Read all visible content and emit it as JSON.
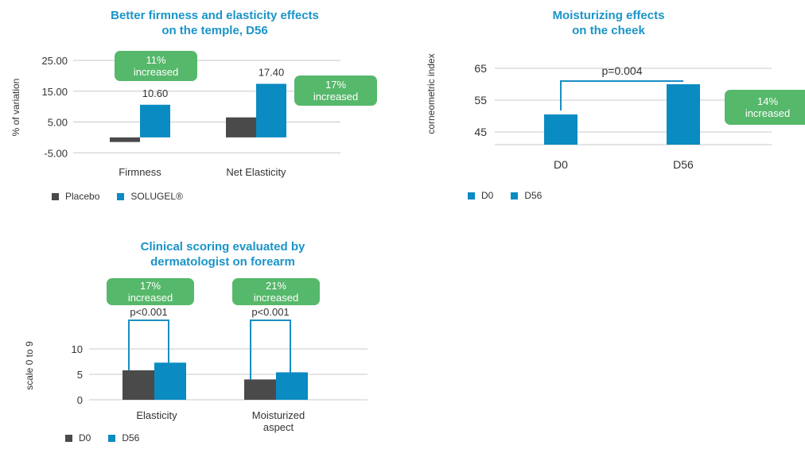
{
  "colors": {
    "placebo": "#4a4a4a",
    "product": "#0a8bc2",
    "badge": "#56b86a",
    "badge_text": "#ffffff",
    "axis": "#c8c8c8",
    "title": "#1a94c8",
    "bracket": "#1a8fc4"
  },
  "chart_data": [
    {
      "type": "bar",
      "title": "Better firmness and elasticity effects\non the temple, D56",
      "ylabel": "% of variation",
      "xlabel": "",
      "ylim": [
        -7,
        25
      ],
      "yticks": [
        25,
        15,
        5,
        -5
      ],
      "ytick_labels": [
        "25.00",
        "15.00",
        "5.00",
        "-5.00"
      ],
      "categories": [
        "Firmness",
        "Net Elasticity"
      ],
      "series": [
        {
          "name": "Placebo",
          "values": [
            -1.5,
            6.5
          ]
        },
        {
          "name": "SOLUGEL®",
          "values": [
            10.6,
            17.4
          ]
        }
      ],
      "data_labels": [
        "10.60",
        "17.40"
      ],
      "badges": [
        {
          "line1": "11%",
          "line2": "increased"
        },
        {
          "line1": "17%",
          "line2": "increased"
        }
      ],
      "legend": [
        "Placebo",
        "SOLUGEL®"
      ]
    },
    {
      "type": "bar",
      "title": "Moisturizing effects\non the cheek",
      "ylabel": "corneometric index",
      "xlabel": "",
      "ylim": [
        41,
        65
      ],
      "yticks": [
        65,
        55,
        45
      ],
      "ytick_labels": [
        "65",
        "55",
        "45"
      ],
      "categories": [
        "D0",
        "D56"
      ],
      "values": [
        50.5,
        60
      ],
      "pvalue": "p=0.004",
      "badge": {
        "line1": "14%",
        "line2": "increased"
      },
      "legend": [
        "D0",
        "D56"
      ]
    },
    {
      "type": "bar",
      "title": "Clinical scoring evaluated by\ndermatologist on forearm",
      "ylabel": "scale 0 to 9",
      "xlabel": "",
      "ylim": [
        0,
        10
      ],
      "yticks": [
        10,
        5,
        0
      ],
      "ytick_labels": [
        "10",
        "5",
        "0"
      ],
      "categories": [
        "Elasticity",
        "Moisturized\naspect"
      ],
      "series": [
        {
          "name": "D0",
          "values": [
            5.8,
            4
          ]
        },
        {
          "name": "D56",
          "values": [
            7.3,
            5.4
          ]
        }
      ],
      "pvalues": [
        "p<0.001",
        "p<0.001"
      ],
      "badges": [
        {
          "line1": "17%",
          "line2": "increased"
        },
        {
          "line1": "21%",
          "line2": "increased"
        }
      ],
      "legend": [
        "D0",
        "D56"
      ]
    }
  ]
}
